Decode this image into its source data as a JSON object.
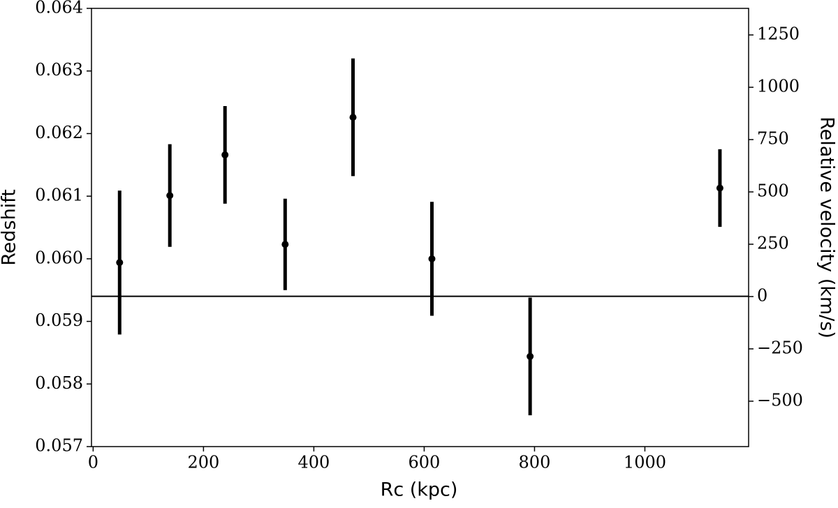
{
  "chart_data": {
    "type": "errorbar",
    "xlabel": "Rc (kpc)",
    "ylabel": "Redshift",
    "y2label": "Relative velocity (km/s)",
    "xlim": [
      -3,
      1188
    ],
    "xticks": [
      0,
      200,
      400,
      600,
      800,
      1000
    ],
    "ylim": [
      0.057,
      0.064
    ],
    "yticks": [
      0.057,
      0.058,
      0.059,
      {
        "value": 0.06,
        "label": "0.060"
      },
      0.061,
      0.062,
      0.063,
      0.064
    ],
    "y2lim": [
      -717,
      1377
    ],
    "y2ticks": [
      {
        "value": -500,
        "label": "−500"
      },
      {
        "value": -250,
        "label": "−250"
      },
      0,
      250,
      500,
      750,
      1000,
      1250
    ],
    "hline": 0.0594,
    "color": "#000000",
    "x": [
      48,
      139,
      239,
      348,
      471,
      614,
      792,
      1136
    ],
    "values": [
      0.05994,
      0.06101,
      0.06166,
      0.06023,
      0.06226,
      0.06,
      0.05844,
      0.06113
    ],
    "errors": [
      0.00115,
      0.00082,
      0.00078,
      0.00073,
      0.00094,
      0.00091,
      0.00094,
      0.00062
    ]
  }
}
